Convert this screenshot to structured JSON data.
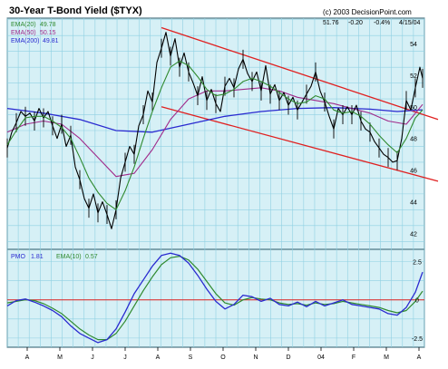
{
  "chart_data": {
    "type": "line",
    "title": "30-Year T-Bond Yield ($TYX)",
    "copyright": "(c) 2003 DecisionPoint.com",
    "stats": {
      "close": "51.76",
      "change": "-0.20",
      "percent": "-0.4%",
      "date": "4/15/04"
    },
    "upper": {
      "series_labels": [
        {
          "name": "EMA(20)",
          "value": "49.78",
          "color": "#2f8a2f"
        },
        {
          "name": "EMA(50)",
          "value": "50.15",
          "color": "#a02a8a"
        },
        {
          "name": "EMA(200)",
          "value": "49.81",
          "color": "#2a2ad0"
        }
      ],
      "ylim": [
        41,
        55.6
      ],
      "y_ticks": [
        42,
        44,
        46,
        48,
        50,
        52,
        54
      ],
      "y_tick_labels": [
        "42",
        "44",
        "46",
        "48",
        "50",
        "52",
        "54"
      ],
      "price": [
        [
          0,
          47.4
        ],
        [
          5,
          48.4
        ],
        [
          10,
          49.0
        ],
        [
          15,
          49.7
        ],
        [
          20,
          49.4
        ],
        [
          25,
          49.6
        ],
        [
          30,
          49.1
        ],
        [
          35,
          49.9
        ],
        [
          40,
          49.3
        ],
        [
          45,
          49.7
        ],
        [
          50,
          48.8
        ],
        [
          55,
          48.0
        ],
        [
          60,
          48.9
        ],
        [
          65,
          47.5
        ],
        [
          70,
          48.2
        ],
        [
          75,
          46.2
        ],
        [
          80,
          45.4
        ],
        [
          85,
          44.2
        ],
        [
          90,
          43.6
        ],
        [
          95,
          44.5
        ],
        [
          100,
          43.3
        ],
        [
          105,
          44.0
        ],
        [
          110,
          43.2
        ],
        [
          115,
          42.3
        ],
        [
          120,
          43.5
        ],
        [
          125,
          45.5
        ],
        [
          130,
          46.5
        ],
        [
          135,
          47.5
        ],
        [
          140,
          47.0
        ],
        [
          145,
          48.8
        ],
        [
          150,
          49.5
        ],
        [
          155,
          51.0
        ],
        [
          160,
          50.3
        ],
        [
          165,
          52.8
        ],
        [
          170,
          53.7
        ],
        [
          175,
          54.7
        ],
        [
          180,
          53.2
        ],
        [
          185,
          54.3
        ],
        [
          190,
          52.5
        ],
        [
          195,
          53.4
        ],
        [
          200,
          52.2
        ],
        [
          205,
          51.5
        ],
        [
          210,
          50.7
        ],
        [
          215,
          51.9
        ],
        [
          220,
          50.4
        ],
        [
          225,
          51.1
        ],
        [
          230,
          50.2
        ],
        [
          235,
          49.7
        ],
        [
          240,
          51.3
        ],
        [
          245,
          51.8
        ],
        [
          250,
          51.2
        ],
        [
          255,
          52.4
        ],
        [
          260,
          53.0
        ],
        [
          265,
          52.1
        ],
        [
          270,
          51.6
        ],
        [
          275,
          52.2
        ],
        [
          280,
          51.0
        ],
        [
          285,
          52.6
        ],
        [
          290,
          50.8
        ],
        [
          295,
          51.4
        ],
        [
          300,
          50.4
        ],
        [
          305,
          50.9
        ],
        [
          310,
          50.1
        ],
        [
          315,
          50.6
        ],
        [
          320,
          49.8
        ],
        [
          325,
          50.3
        ],
        [
          330,
          50.8
        ],
        [
          335,
          51.3
        ],
        [
          340,
          52.2
        ],
        [
          345,
          51.0
        ],
        [
          350,
          50.3
        ],
        [
          355,
          49.4
        ],
        [
          360,
          48.6
        ],
        [
          365,
          49.9
        ],
        [
          370,
          49.5
        ],
        [
          375,
          50.0
        ],
        [
          380,
          49.5
        ],
        [
          385,
          50.1
        ],
        [
          390,
          49.1
        ],
        [
          395,
          48.6
        ],
        [
          400,
          48.4
        ],
        [
          405,
          47.8
        ],
        [
          410,
          47.4
        ],
        [
          415,
          47.0
        ],
        [
          420,
          46.8
        ],
        [
          425,
          46.5
        ],
        [
          430,
          46.6
        ],
        [
          435,
          48.0
        ],
        [
          440,
          50.4
        ],
        [
          445,
          49.8
        ],
        [
          450,
          51.2
        ],
        [
          455,
          52.5
        ],
        [
          458,
          51.8
        ]
      ],
      "ema20": [
        [
          0,
          47.6
        ],
        [
          10,
          48.5
        ],
        [
          20,
          49.3
        ],
        [
          30,
          49.4
        ],
        [
          40,
          49.4
        ],
        [
          50,
          49.1
        ],
        [
          60,
          48.7
        ],
        [
          70,
          48.0
        ],
        [
          80,
          46.8
        ],
        [
          90,
          45.5
        ],
        [
          100,
          44.6
        ],
        [
          110,
          43.9
        ],
        [
          120,
          43.5
        ],
        [
          130,
          44.7
        ],
        [
          140,
          46.2
        ],
        [
          150,
          48.0
        ],
        [
          160,
          49.7
        ],
        [
          170,
          51.2
        ],
        [
          180,
          52.5
        ],
        [
          190,
          52.9
        ],
        [
          200,
          52.6
        ],
        [
          210,
          51.9
        ],
        [
          220,
          51.1
        ],
        [
          230,
          50.7
        ],
        [
          240,
          50.8
        ],
        [
          250,
          51.1
        ],
        [
          260,
          51.6
        ],
        [
          270,
          51.8
        ],
        [
          280,
          51.6
        ],
        [
          290,
          51.3
        ],
        [
          300,
          50.9
        ],
        [
          310,
          50.5
        ],
        [
          320,
          50.2
        ],
        [
          330,
          50.3
        ],
        [
          340,
          50.7
        ],
        [
          350,
          50.5
        ],
        [
          360,
          49.8
        ],
        [
          370,
          49.6
        ],
        [
          380,
          49.7
        ],
        [
          390,
          49.4
        ],
        [
          400,
          48.9
        ],
        [
          410,
          48.2
        ],
        [
          420,
          47.6
        ],
        [
          430,
          47.1
        ],
        [
          440,
          48.0
        ],
        [
          450,
          49.3
        ],
        [
          458,
          49.8
        ]
      ],
      "ema50": [
        [
          0,
          48.4
        ],
        [
          20,
          48.9
        ],
        [
          40,
          49.1
        ],
        [
          60,
          48.9
        ],
        [
          80,
          48.0
        ],
        [
          100,
          46.8
        ],
        [
          120,
          45.6
        ],
        [
          140,
          45.8
        ],
        [
          160,
          47.3
        ],
        [
          180,
          49.2
        ],
        [
          200,
          50.5
        ],
        [
          220,
          51.0
        ],
        [
          240,
          51.0
        ],
        [
          260,
          51.1
        ],
        [
          280,
          51.2
        ],
        [
          300,
          51.0
        ],
        [
          320,
          50.6
        ],
        [
          340,
          50.4
        ],
        [
          360,
          50.2
        ],
        [
          380,
          49.9
        ],
        [
          400,
          49.6
        ],
        [
          420,
          49.1
        ],
        [
          440,
          48.9
        ],
        [
          458,
          50.15
        ]
      ],
      "ema200": [
        [
          0,
          49.9
        ],
        [
          40,
          49.6
        ],
        [
          80,
          49.2
        ],
        [
          120,
          48.5
        ],
        [
          160,
          48.4
        ],
        [
          200,
          48.9
        ],
        [
          240,
          49.4
        ],
        [
          280,
          49.7
        ],
        [
          320,
          49.9
        ],
        [
          360,
          49.95
        ],
        [
          400,
          49.85
        ],
        [
          430,
          49.7
        ],
        [
          458,
          49.81
        ]
      ],
      "trend_upper": [
        [
          170,
          55.0
        ],
        [
          475,
          49.2
        ]
      ],
      "trend_lower": [
        [
          170,
          50.0
        ],
        [
          475,
          45.3
        ]
      ]
    },
    "lower": {
      "series_labels": [
        {
          "name": "PMO",
          "value": "1.81",
          "color": "#2a2ad0"
        },
        {
          "name": "EMA(10)",
          "value": "0.57",
          "color": "#2f8a2f"
        }
      ],
      "ylim": [
        -3.1,
        3.3
      ],
      "zero_line": true,
      "y_ticks": [
        2.5,
        0,
        -2.5
      ],
      "y_tick_labels": [
        "2.5",
        "0",
        "-2.5"
      ],
      "pmo": [
        [
          0,
          -0.4
        ],
        [
          10,
          -0.05
        ],
        [
          20,
          0.05
        ],
        [
          30,
          -0.15
        ],
        [
          40,
          -0.4
        ],
        [
          50,
          -0.7
        ],
        [
          60,
          -1.1
        ],
        [
          70,
          -1.7
        ],
        [
          80,
          -2.2
        ],
        [
          90,
          -2.5
        ],
        [
          100,
          -2.8
        ],
        [
          110,
          -2.6
        ],
        [
          120,
          -1.9
        ],
        [
          130,
          -0.8
        ],
        [
          140,
          0.4
        ],
        [
          150,
          1.3
        ],
        [
          160,
          2.2
        ],
        [
          170,
          2.9
        ],
        [
          180,
          3.05
        ],
        [
          190,
          2.9
        ],
        [
          200,
          2.4
        ],
        [
          210,
          1.6
        ],
        [
          220,
          0.7
        ],
        [
          230,
          -0.1
        ],
        [
          240,
          -0.6
        ],
        [
          250,
          -0.3
        ],
        [
          260,
          0.3
        ],
        [
          270,
          0.2
        ],
        [
          280,
          -0.1
        ],
        [
          290,
          0.1
        ],
        [
          300,
          -0.3
        ],
        [
          310,
          -0.4
        ],
        [
          320,
          -0.15
        ],
        [
          330,
          -0.45
        ],
        [
          340,
          -0.1
        ],
        [
          350,
          -0.4
        ],
        [
          360,
          -0.2
        ],
        [
          370,
          0.0
        ],
        [
          380,
          -0.3
        ],
        [
          390,
          -0.4
        ],
        [
          400,
          -0.5
        ],
        [
          410,
          -0.6
        ],
        [
          420,
          -0.9
        ],
        [
          430,
          -1.0
        ],
        [
          440,
          -0.5
        ],
        [
          450,
          0.5
        ],
        [
          458,
          1.81
        ]
      ],
      "ema10": [
        [
          0,
          -0.2
        ],
        [
          10,
          -0.1
        ],
        [
          20,
          0.0
        ],
        [
          30,
          -0.05
        ],
        [
          40,
          -0.25
        ],
        [
          50,
          -0.55
        ],
        [
          60,
          -0.9
        ],
        [
          70,
          -1.4
        ],
        [
          80,
          -1.9
        ],
        [
          90,
          -2.3
        ],
        [
          100,
          -2.6
        ],
        [
          110,
          -2.6
        ],
        [
          120,
          -2.2
        ],
        [
          130,
          -1.4
        ],
        [
          140,
          -0.4
        ],
        [
          150,
          0.6
        ],
        [
          160,
          1.5
        ],
        [
          170,
          2.3
        ],
        [
          180,
          2.75
        ],
        [
          190,
          2.85
        ],
        [
          200,
          2.6
        ],
        [
          210,
          2.0
        ],
        [
          220,
          1.2
        ],
        [
          230,
          0.4
        ],
        [
          240,
          -0.2
        ],
        [
          250,
          -0.35
        ],
        [
          260,
          0.0
        ],
        [
          270,
          0.15
        ],
        [
          280,
          0.05
        ],
        [
          290,
          0.0
        ],
        [
          300,
          -0.2
        ],
        [
          310,
          -0.3
        ],
        [
          320,
          -0.25
        ],
        [
          330,
          -0.35
        ],
        [
          340,
          -0.2
        ],
        [
          350,
          -0.3
        ],
        [
          360,
          -0.25
        ],
        [
          370,
          -0.1
        ],
        [
          380,
          -0.2
        ],
        [
          390,
          -0.3
        ],
        [
          400,
          -0.4
        ],
        [
          410,
          -0.5
        ],
        [
          420,
          -0.7
        ],
        [
          430,
          -0.85
        ],
        [
          440,
          -0.7
        ],
        [
          450,
          -0.1
        ],
        [
          458,
          0.57
        ]
      ]
    },
    "x_range": [
      0,
      460
    ],
    "x_tick_positions": [
      22,
      58,
      94,
      130,
      166,
      202,
      238,
      274,
      310,
      346,
      382,
      418,
      454
    ],
    "x_tick_labels": [
      "A",
      "M",
      "J",
      "J",
      "A",
      "S",
      "O",
      "N",
      "D",
      "04",
      "F",
      "M",
      "A"
    ],
    "colors": {
      "background": "#d6f0f6",
      "grid": "#8fd0e2",
      "price": "#000000",
      "trend": "#e02020",
      "zero": "#e02020"
    }
  }
}
